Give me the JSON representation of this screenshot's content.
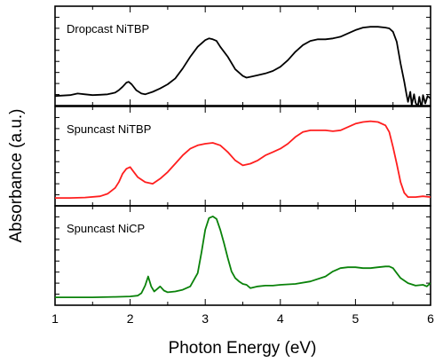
{
  "chart_data": {
    "type": "line",
    "xlabel": "Photon Energy (eV)",
    "ylabel": "Absorbance (a.u.)",
    "xlim": [
      1,
      6
    ],
    "x_ticks": [
      1,
      2,
      3,
      4,
      5,
      6
    ],
    "x_tick_labels": [
      "1",
      "2",
      "3",
      "4",
      "5",
      "6"
    ],
    "ylim": [
      0,
      1
    ],
    "grid": false,
    "legend": "none",
    "panels": [
      {
        "label": "Dropcast NiTBP",
        "color": "#000000",
        "x": [
          1.0,
          1.1,
          1.2,
          1.3,
          1.4,
          1.5,
          1.6,
          1.7,
          1.8,
          1.85,
          1.9,
          1.95,
          1.98,
          2.02,
          2.08,
          2.15,
          2.2,
          2.3,
          2.4,
          2.5,
          2.6,
          2.7,
          2.8,
          2.9,
          3.0,
          3.05,
          3.1,
          3.15,
          3.2,
          3.3,
          3.4,
          3.5,
          3.55,
          3.6,
          3.7,
          3.8,
          3.9,
          4.0,
          4.1,
          4.2,
          4.3,
          4.4,
          4.5,
          4.6,
          4.7,
          4.8,
          4.9,
          5.0,
          5.1,
          5.2,
          5.3,
          5.4,
          5.45,
          5.5,
          5.55,
          5.6,
          5.65,
          5.68,
          5.7,
          5.73,
          5.75,
          5.78,
          5.8,
          5.83,
          5.85,
          5.88,
          5.9,
          5.93,
          5.96,
          6.0
        ],
        "y": [
          0.03,
          0.035,
          0.04,
          0.06,
          0.05,
          0.04,
          0.045,
          0.05,
          0.07,
          0.1,
          0.14,
          0.19,
          0.2,
          0.17,
          0.1,
          0.06,
          0.05,
          0.08,
          0.12,
          0.17,
          0.24,
          0.36,
          0.5,
          0.62,
          0.7,
          0.72,
          0.71,
          0.69,
          0.62,
          0.5,
          0.35,
          0.27,
          0.25,
          0.26,
          0.28,
          0.3,
          0.33,
          0.38,
          0.46,
          0.56,
          0.64,
          0.69,
          0.71,
          0.71,
          0.72,
          0.74,
          0.78,
          0.82,
          0.85,
          0.86,
          0.86,
          0.85,
          0.84,
          0.8,
          0.68,
          0.42,
          0.2,
          0.05,
          -0.04,
          0.08,
          -0.08,
          0.05,
          -0.05,
          -0.1,
          0.02,
          -0.12,
          0.04,
          -0.06,
          0.03,
          0.0
        ]
      },
      {
        "label": "Spuncast NiTBP",
        "color": "#ff1e1e",
        "x": [
          1.0,
          1.2,
          1.4,
          1.6,
          1.7,
          1.8,
          1.85,
          1.9,
          1.95,
          2.0,
          2.05,
          2.1,
          2.2,
          2.3,
          2.4,
          2.5,
          2.6,
          2.7,
          2.8,
          2.9,
          3.0,
          3.1,
          3.2,
          3.3,
          3.4,
          3.5,
          3.6,
          3.7,
          3.8,
          3.9,
          4.0,
          4.1,
          4.2,
          4.3,
          4.4,
          4.5,
          4.6,
          4.7,
          4.8,
          4.9,
          5.0,
          5.1,
          5.2,
          5.3,
          5.4,
          5.45,
          5.5,
          5.55,
          5.6,
          5.65,
          5.7,
          5.8,
          5.9,
          6.0
        ],
        "y": [
          0.01,
          0.01,
          0.015,
          0.03,
          0.06,
          0.13,
          0.2,
          0.3,
          0.36,
          0.38,
          0.32,
          0.26,
          0.2,
          0.18,
          0.24,
          0.32,
          0.42,
          0.52,
          0.6,
          0.64,
          0.66,
          0.67,
          0.64,
          0.56,
          0.46,
          0.4,
          0.42,
          0.46,
          0.52,
          0.56,
          0.6,
          0.66,
          0.74,
          0.8,
          0.82,
          0.82,
          0.82,
          0.81,
          0.82,
          0.86,
          0.9,
          0.92,
          0.93,
          0.92,
          0.88,
          0.8,
          0.62,
          0.42,
          0.2,
          0.07,
          0.02,
          0.02,
          0.03,
          0.02
        ]
      },
      {
        "label": "Spuncast NiCP",
        "color": "#0a820a",
        "x": [
          1.0,
          1.5,
          1.8,
          2.0,
          2.1,
          2.15,
          2.2,
          2.24,
          2.28,
          2.32,
          2.36,
          2.4,
          2.45,
          2.5,
          2.6,
          2.7,
          2.8,
          2.9,
          2.95,
          3.0,
          3.05,
          3.1,
          3.15,
          3.2,
          3.25,
          3.3,
          3.35,
          3.4,
          3.45,
          3.5,
          3.55,
          3.6,
          3.7,
          3.8,
          3.9,
          4.0,
          4.2,
          4.4,
          4.6,
          4.7,
          4.8,
          4.9,
          5.0,
          5.1,
          5.2,
          5.3,
          5.4,
          5.45,
          5.5,
          5.55,
          5.6,
          5.7,
          5.8,
          5.9,
          5.95,
          6.0
        ],
        "y": [
          0.01,
          0.01,
          0.015,
          0.02,
          0.03,
          0.06,
          0.15,
          0.26,
          0.14,
          0.08,
          0.11,
          0.14,
          0.09,
          0.07,
          0.08,
          0.1,
          0.14,
          0.3,
          0.55,
          0.82,
          0.96,
          0.98,
          0.95,
          0.82,
          0.66,
          0.48,
          0.32,
          0.24,
          0.2,
          0.17,
          0.16,
          0.12,
          0.14,
          0.15,
          0.15,
          0.16,
          0.17,
          0.2,
          0.26,
          0.32,
          0.36,
          0.37,
          0.37,
          0.36,
          0.36,
          0.37,
          0.38,
          0.38,
          0.36,
          0.3,
          0.24,
          0.18,
          0.15,
          0.16,
          0.14,
          0.18
        ]
      }
    ]
  }
}
